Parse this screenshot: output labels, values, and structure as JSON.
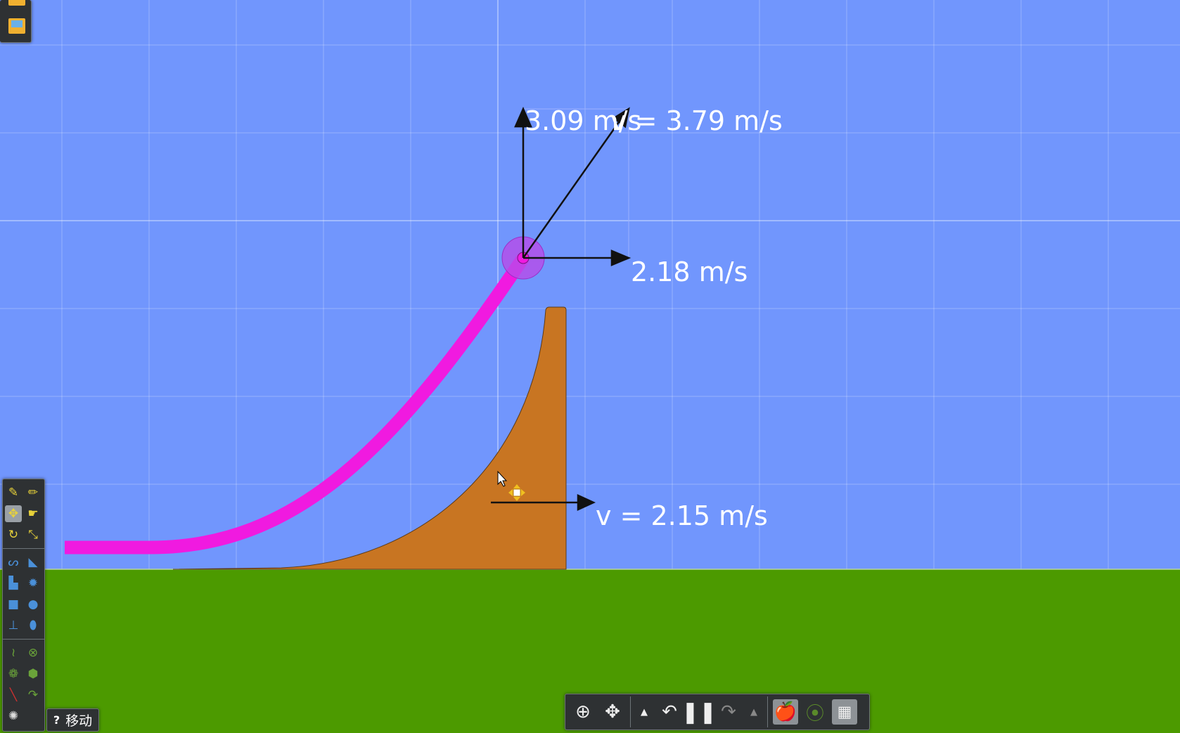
{
  "colors": {
    "sky": "#7196fd",
    "ground": "#4c9a00",
    "trail": "#f01ae0",
    "ramp": "#c87522",
    "ball": "#b84be8"
  },
  "vectors": {
    "vertical_label": "3.09 m/s",
    "total_label": "v = 3.79 m/s",
    "horizontal_label": "2.18 m/s",
    "ramp_velocity_label": "v = 2.15 m/s"
  },
  "toolbox": {
    "groups": [
      [
        "sketch-icon",
        "pencil-icon",
        "move-icon",
        "drag-hand-icon",
        "rotate-icon",
        "scale-icon"
      ],
      [
        "rope-icon",
        "eraser-icon",
        "polygon-icon",
        "gear-icon",
        "box-icon",
        "circle-icon",
        "plane-icon",
        "pill-icon"
      ],
      [
        "spring-icon",
        "fixate-icon",
        "hinge-icon",
        "thruster-icon",
        "laser-icon",
        "tracer-icon",
        "spiral-icon"
      ]
    ],
    "selected": "move-icon"
  },
  "help": {
    "icon": "?",
    "label": "移动"
  },
  "bottombar": {
    "buttons": [
      "zoom-icon",
      "pan-icon",
      "undo-icon",
      "pause-icon",
      "redo-icon",
      "gravity-icon",
      "air-friction-icon",
      "grid-icon"
    ]
  }
}
